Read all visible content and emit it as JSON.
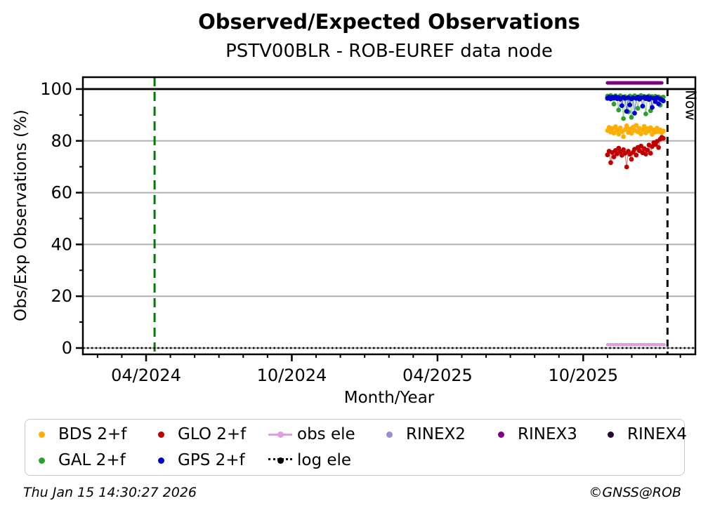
{
  "header": {
    "title": "Observed/Expected Observations",
    "subtitle": "PSTV00BLR - ROB-EUREF data node"
  },
  "footer": {
    "timestamp": "Thu Jan 15 14:30:27 2026",
    "credit": "©GNSS@ROB"
  },
  "legend": {
    "items": [
      {
        "label": "BDS 2+f",
        "marker": "dot",
        "color": "#FFAE00",
        "row": 0,
        "col": 0
      },
      {
        "label": "GLO 2+f",
        "marker": "dot",
        "color": "#C00000",
        "row": 0,
        "col": 1
      },
      {
        "label": "obs ele",
        "marker": "line-dot",
        "color": "#DDA0DD",
        "row": 0,
        "col": 2
      },
      {
        "label": "RINEX2",
        "marker": "dot",
        "color": "#9C8ECC",
        "row": 0,
        "col": 3
      },
      {
        "label": "RINEX3",
        "marker": "dot",
        "color": "#800080",
        "row": 0,
        "col": 4
      },
      {
        "label": "RINEX4",
        "marker": "dot",
        "color": "#270935",
        "row": 0,
        "col": 5
      },
      {
        "label": "GAL 2+f",
        "marker": "dot",
        "color": "#2CA02C",
        "row": 1,
        "col": 0
      },
      {
        "label": "GPS 2+f",
        "marker": "dot",
        "color": "#0000CD",
        "row": 1,
        "col": 1
      },
      {
        "label": "log ele",
        "marker": "dotted-line-dot",
        "color": "#000000",
        "row": 1,
        "col": 2
      }
    ]
  },
  "chart_data": {
    "type": "scatter",
    "title": "Observed/Expected Observations",
    "subtitle": "PSTV00BLR - ROB-EUREF data node",
    "xlabel": "Month/Year",
    "ylabel": "Obs/Exp Observations (%)",
    "ylim": [
      -2.5,
      104.6
    ],
    "grid": true,
    "grid_color": "#b0b0b0",
    "y_major_ticks": [
      0,
      20,
      40,
      60,
      80,
      100
    ],
    "y_minor_ticks": [
      10,
      30,
      50,
      70,
      90
    ],
    "x_major_ticks": [
      {
        "label": "04/2024",
        "month": 0
      },
      {
        "label": "10/2024",
        "month": 6
      },
      {
        "label": "04/2025",
        "month": 12
      },
      {
        "label": "10/2025",
        "month": 18
      }
    ],
    "x_minor_tick_month_range": [
      -2,
      22
    ],
    "reference_lines": {
      "full_line_100": 100,
      "start_marker": {
        "month": 0.35,
        "color": "#007D00",
        "style": "dashed"
      },
      "now_marker": {
        "month": 21.47,
        "label": "Now",
        "color": "#000000",
        "style": "dashed"
      }
    },
    "series": [
      {
        "name": "RINEX3",
        "color": "#800080",
        "style": "line",
        "width": 5,
        "points": [
          [
            0,
            102.4
          ],
          [
            68,
            102.4
          ]
        ]
      },
      {
        "name": "obs ele",
        "color": "#DDA0DD",
        "style": "line",
        "width": 4.5,
        "points": [
          [
            0,
            1.3
          ],
          [
            71,
            1.3
          ]
        ]
      },
      {
        "name": "log ele",
        "color": "#000000",
        "style": "hline-dotted",
        "value": 0,
        "points": []
      },
      {
        "name": "GAL 2+f",
        "color": "#2CA02C",
        "style": "markers",
        "points": [
          [
            0,
            97.3
          ],
          [
            2,
            96.8
          ],
          [
            4,
            97.5
          ],
          [
            6,
            97.0
          ],
          [
            8,
            94.2
          ],
          [
            10,
            97.4
          ],
          [
            12,
            96.9
          ],
          [
            14,
            91.9
          ],
          [
            16,
            97.4
          ],
          [
            18,
            96.9
          ],
          [
            20,
            88.6
          ],
          [
            22,
            97.1
          ],
          [
            24,
            96.6
          ],
          [
            26,
            91.2
          ],
          [
            28,
            97.3
          ],
          [
            30,
            89.1
          ],
          [
            32,
            97.0
          ],
          [
            34,
            97.4
          ],
          [
            36,
            96.8
          ],
          [
            38,
            92.6
          ],
          [
            40,
            97.1
          ],
          [
            42,
            97.5
          ],
          [
            44,
            96.7
          ],
          [
            46,
            97.2
          ],
          [
            48,
            90.4
          ],
          [
            50,
            96.9
          ],
          [
            52,
            97.3
          ],
          [
            54,
            91.6
          ],
          [
            56,
            97.1
          ],
          [
            58,
            96.6
          ],
          [
            60,
            97.2
          ],
          [
            62,
            96.8
          ],
          [
            64,
            97.0
          ],
          [
            66,
            93.8
          ],
          [
            68,
            96.7
          ],
          [
            70,
            96.9
          ]
        ]
      },
      {
        "name": "GPS 2+f",
        "color": "#0000CD",
        "style": "markers",
        "points": [
          [
            0,
            96.4
          ],
          [
            2,
            96.9
          ],
          [
            4,
            96.2
          ],
          [
            6,
            96.8
          ],
          [
            8,
            96.5
          ],
          [
            10,
            97.0
          ],
          [
            12,
            96.3
          ],
          [
            14,
            96.7
          ],
          [
            16,
            96.1
          ],
          [
            18,
            93.6
          ],
          [
            20,
            96.8
          ],
          [
            22,
            96.4
          ],
          [
            24,
            91.4
          ],
          [
            26,
            96.7
          ],
          [
            28,
            93.9
          ],
          [
            30,
            96.2
          ],
          [
            32,
            96.6
          ],
          [
            34,
            90.7
          ],
          [
            36,
            96.4
          ],
          [
            38,
            96.9
          ],
          [
            40,
            96.1
          ],
          [
            42,
            96.6
          ],
          [
            44,
            93.4
          ],
          [
            46,
            96.8
          ],
          [
            48,
            96.3
          ],
          [
            50,
            96.9
          ],
          [
            52,
            96.0
          ],
          [
            54,
            96.6
          ],
          [
            56,
            92.9
          ],
          [
            58,
            96.4
          ],
          [
            60,
            95.1
          ],
          [
            62,
            96.7
          ],
          [
            64,
            94.3
          ],
          [
            66,
            96.2
          ],
          [
            68,
            95.8
          ],
          [
            70,
            95.4
          ]
        ]
      },
      {
        "name": "BDS 2+f",
        "color": "#FFAE00",
        "style": "markers",
        "points": [
          [
            0,
            84.0
          ],
          [
            2,
            85.2
          ],
          [
            4,
            83.4
          ],
          [
            6,
            84.8
          ],
          [
            8,
            83.0
          ],
          [
            10,
            85.5
          ],
          [
            12,
            84.2
          ],
          [
            14,
            82.6
          ],
          [
            16,
            85.0
          ],
          [
            18,
            83.6
          ],
          [
            20,
            81.6
          ],
          [
            22,
            84.4
          ],
          [
            24,
            85.8
          ],
          [
            26,
            83.2
          ],
          [
            28,
            84.6
          ],
          [
            30,
            82.9
          ],
          [
            32,
            85.3
          ],
          [
            34,
            84.0
          ],
          [
            36,
            86.0
          ],
          [
            38,
            83.5
          ],
          [
            40,
            84.8
          ],
          [
            42,
            82.7
          ],
          [
            44,
            84.3
          ],
          [
            46,
            85.6
          ],
          [
            48,
            83.1
          ],
          [
            50,
            84.7
          ],
          [
            52,
            83.8
          ],
          [
            54,
            85.1
          ],
          [
            56,
            82.5
          ],
          [
            58,
            84.2
          ],
          [
            60,
            83.4
          ],
          [
            62,
            84.9
          ],
          [
            64,
            83.6
          ],
          [
            66,
            84.2
          ],
          [
            68,
            83.2
          ],
          [
            70,
            83.8
          ]
        ]
      },
      {
        "name": "GLO 2+f",
        "color": "#C00000",
        "style": "markers",
        "points": [
          [
            0,
            74.6
          ],
          [
            2,
            76.0
          ],
          [
            4,
            71.6
          ],
          [
            6,
            75.5
          ],
          [
            8,
            73.8
          ],
          [
            10,
            76.3
          ],
          [
            12,
            75.0
          ],
          [
            14,
            77.2
          ],
          [
            16,
            75.8
          ],
          [
            18,
            74.4
          ],
          [
            20,
            76.6
          ],
          [
            22,
            75.2
          ],
          [
            24,
            69.9
          ],
          [
            26,
            76.0
          ],
          [
            28,
            74.8
          ],
          [
            30,
            72.9
          ],
          [
            32,
            75.6
          ],
          [
            34,
            76.8
          ],
          [
            36,
            74.5
          ],
          [
            38,
            77.5
          ],
          [
            40,
            76.2
          ],
          [
            42,
            78.0
          ],
          [
            44,
            75.4
          ],
          [
            46,
            77.0
          ],
          [
            48,
            74.9
          ],
          [
            50,
            76.4
          ],
          [
            52,
            78.4
          ],
          [
            54,
            75.2
          ],
          [
            56,
            77.8
          ],
          [
            58,
            79.3
          ],
          [
            60,
            78.6
          ],
          [
            62,
            79.8
          ],
          [
            64,
            77.4
          ],
          [
            66,
            80.6
          ],
          [
            68,
            81.4
          ],
          [
            70,
            81.0
          ]
        ]
      },
      {
        "name": "RINEX2",
        "color": "#9C8ECC",
        "style": "markers",
        "points": []
      },
      {
        "name": "RINEX4",
        "color": "#270935",
        "style": "markers",
        "points": []
      }
    ]
  }
}
